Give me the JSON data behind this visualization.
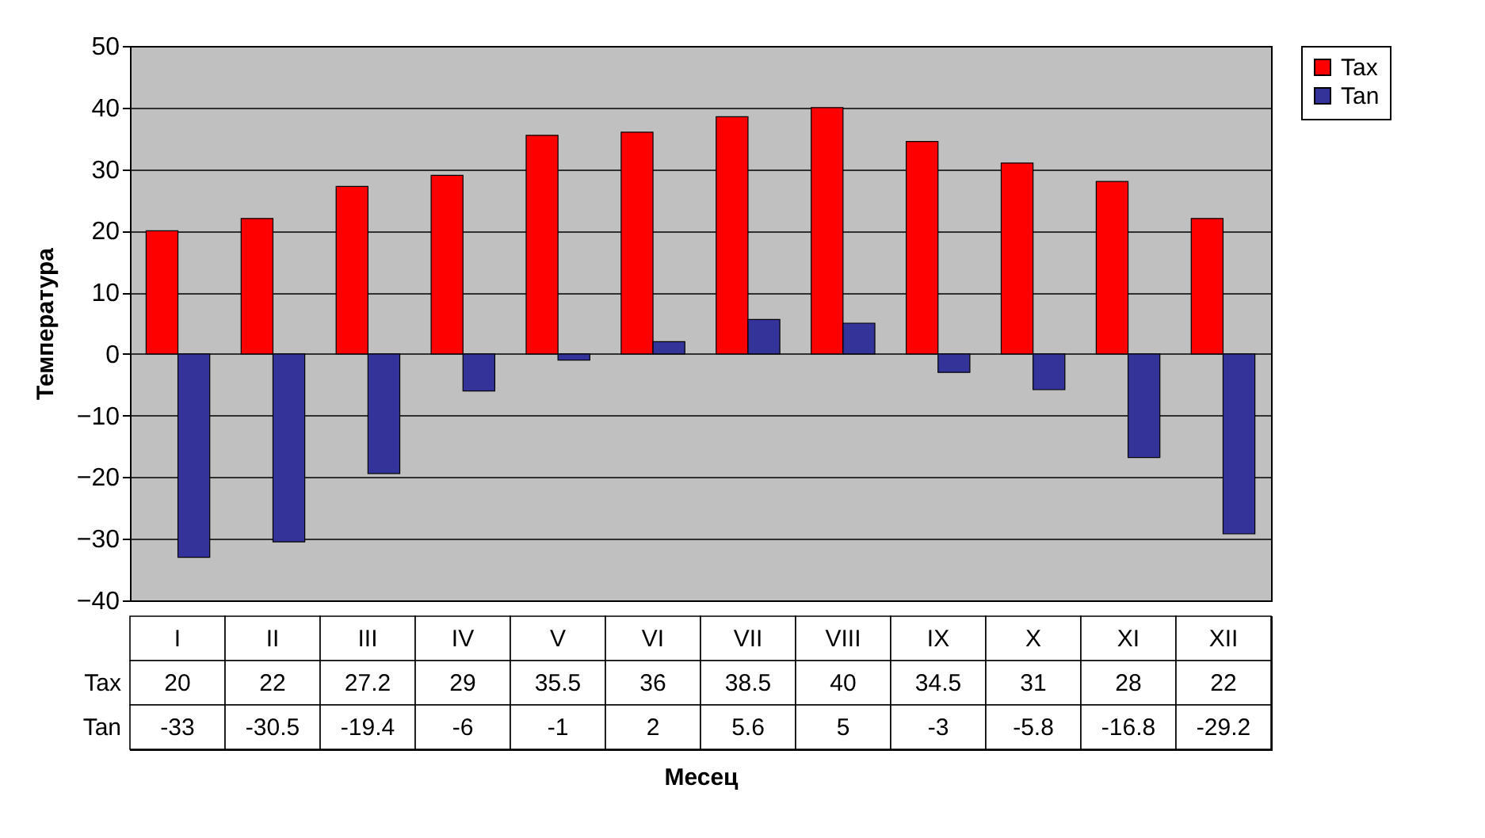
{
  "chart_data": {
    "type": "bar",
    "xlabel": "Месец",
    "ylabel": "Температура",
    "categories": [
      "I",
      "II",
      "III",
      "IV",
      "V",
      "VI",
      "VII",
      "VIII",
      "IX",
      "X",
      "XI",
      "XII"
    ],
    "series": [
      {
        "name": "Tax",
        "color": "#ff0000",
        "values": [
          20,
          22,
          27.2,
          29,
          35.5,
          36,
          38.5,
          40,
          34.5,
          31,
          28,
          22
        ]
      },
      {
        "name": "Tan",
        "color": "#333399",
        "values": [
          -33,
          -30.5,
          -19.4,
          -6,
          -1,
          2,
          5.6,
          5,
          -3,
          -5.8,
          -16.8,
          -29.2
        ]
      }
    ],
    "ylim": [
      -40,
      50
    ],
    "yticks": [
      -40,
      -30,
      -20,
      -10,
      0,
      10,
      20,
      30,
      40,
      50
    ],
    "grid": "y",
    "legend": "right",
    "data_labels": true
  }
}
